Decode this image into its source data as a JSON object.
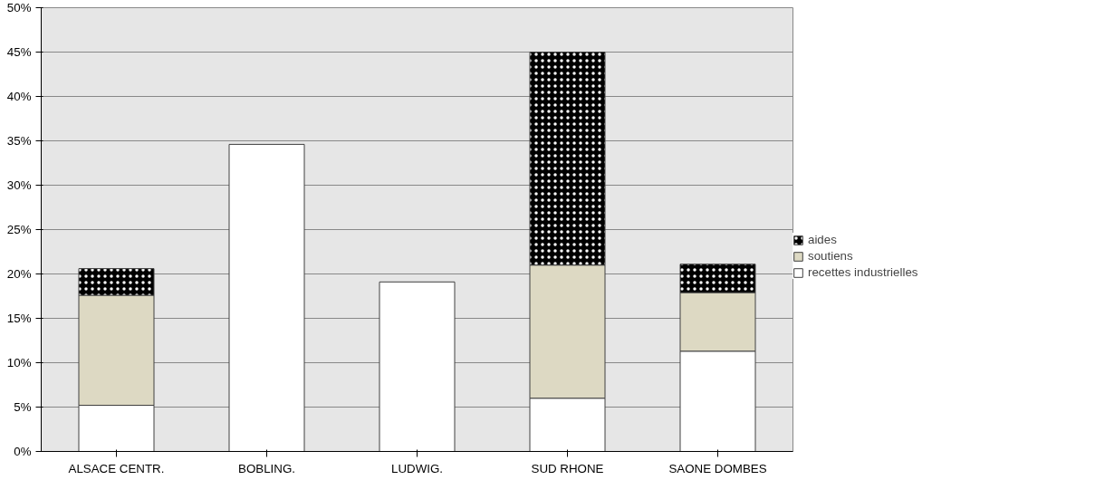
{
  "chart_data": {
    "type": "bar",
    "stacked": true,
    "categories": [
      "ALSACE CENTR.",
      "BOBLING.",
      "LUDWIG.",
      "SUD RHONE",
      "SAONE DOMBES"
    ],
    "series": [
      {
        "name": "recettes industrielles",
        "color": "#ffffff",
        "values": [
          5.2,
          34.6,
          19.1,
          6.0,
          11.3
        ]
      },
      {
        "name": "soutiens",
        "color": "#ddd9c3",
        "values": [
          12.4,
          null,
          null,
          15.0,
          6.6
        ]
      },
      {
        "name": "aides",
        "color": "#000000",
        "values": [
          3.0,
          null,
          null,
          24.0,
          3.2
        ]
      }
    ],
    "ylim": [
      0,
      50
    ],
    "yticks": [
      {
        "value": 0,
        "label": "0%"
      },
      {
        "value": 5,
        "label": "5%"
      },
      {
        "value": 10,
        "label": "10%"
      },
      {
        "value": 15,
        "label": "15%"
      },
      {
        "value": 20,
        "label": "20%"
      },
      {
        "value": 25,
        "label": "25%"
      },
      {
        "value": 30,
        "label": "30%"
      },
      {
        "value": 35,
        "label": "35%"
      },
      {
        "value": 40,
        "label": "40%"
      },
      {
        "value": 45,
        "label": "45%"
      },
      {
        "value": 50,
        "label": "50%"
      }
    ],
    "grid": "y",
    "legend": "right"
  }
}
